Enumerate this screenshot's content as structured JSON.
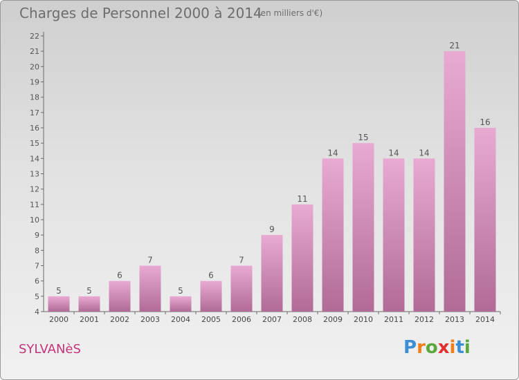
{
  "header": {
    "title": "Charges de Personnel 2000 à 2014",
    "subtitle": "(en milliers d'€)"
  },
  "footer": {
    "place": "SYLVANèS",
    "logo_text": "Proxiti"
  },
  "colors": {
    "bar_top": "#e8aad2",
    "bar_bottom": "#b06b96",
    "place_text": "#c4327a",
    "logo_letters": [
      "#3a8fd4",
      "#f07f1a",
      "#5aa83a",
      "#e0312f",
      "#f07f1a",
      "#3a8fd4",
      "#5aa83a"
    ]
  },
  "chart_data": {
    "type": "bar",
    "title": "Charges de Personnel 2000 à 2014",
    "subtitle": "(en milliers d'€)",
    "categories": [
      "2000",
      "2001",
      "2002",
      "2003",
      "2004",
      "2005",
      "2006",
      "2007",
      "2008",
      "2009",
      "2010",
      "2011",
      "2012",
      "2013",
      "2014"
    ],
    "values": [
      5,
      5,
      6,
      7,
      5,
      6,
      7,
      9,
      11,
      14,
      15,
      14,
      14,
      21,
      16
    ],
    "ylim": [
      4,
      22
    ],
    "yticks": [
      4,
      5,
      6,
      7,
      8,
      9,
      10,
      11,
      12,
      13,
      14,
      15,
      16,
      17,
      18,
      19,
      20,
      21,
      22
    ],
    "grid": false,
    "data_labels": true
  }
}
